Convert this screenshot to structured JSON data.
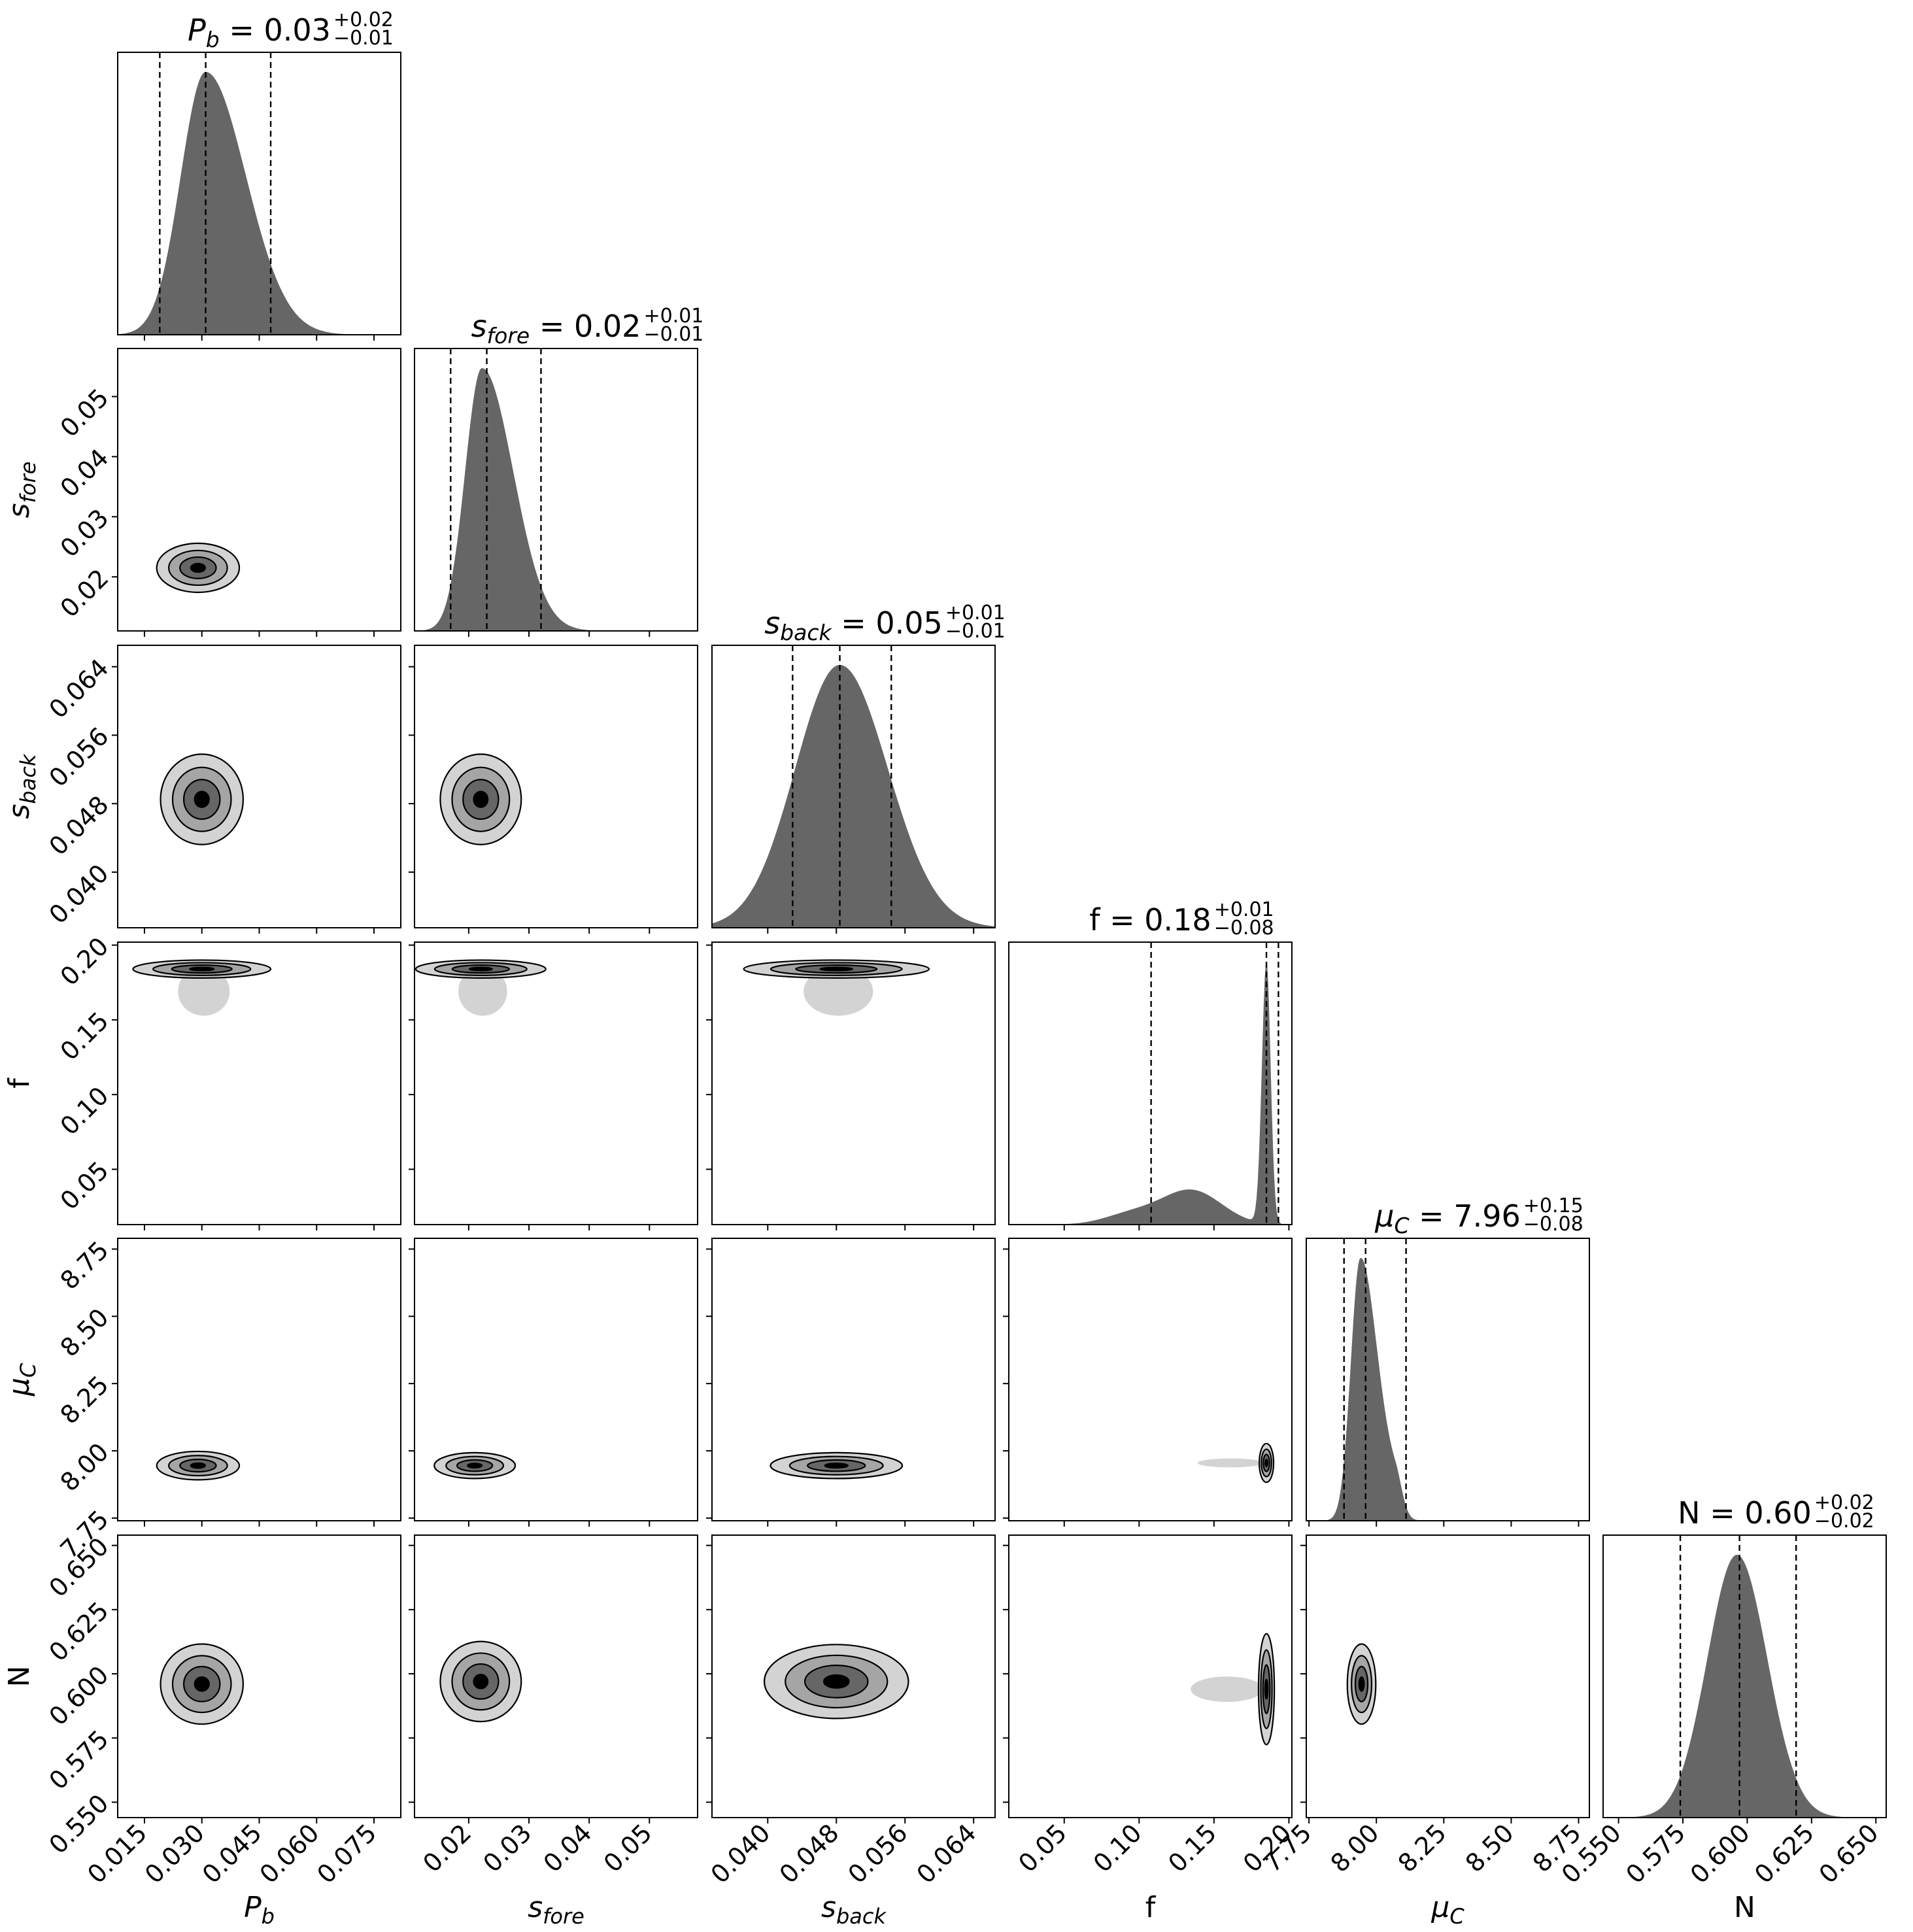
{
  "chart_data": {
    "type": "corner",
    "parameters": [
      {
        "key": "Pb",
        "label": "P",
        "label_sub": "b",
        "label_italic": true,
        "range": [
          0.008,
          0.082
        ],
        "ticks": [
          "0.015",
          "0.030",
          "0.045",
          "0.060",
          "0.075"
        ],
        "median": 0.031,
        "q16": 0.019,
        "q84": 0.048,
        "title_prefix": "P",
        "title_sub": "b",
        "title_value": " = 0.03",
        "title_err_up": "+0.02",
        "title_err_down": "−0.01",
        "hist": {
          "mode": 0.031,
          "sigma_left": 0.0065,
          "sigma_right": 0.0105
        }
      },
      {
        "key": "sfore",
        "label": "s",
        "label_sub": "fore",
        "label_italic": true,
        "range": [
          0.011,
          0.058
        ],
        "ticks": [
          "0.02",
          "0.03",
          "0.04",
          "0.05"
        ],
        "median": 0.023,
        "q16": 0.017,
        "q84": 0.032,
        "title_prefix": "s",
        "title_sub": "fore",
        "title_value": " = 0.02",
        "title_err_up": "+0.01",
        "title_err_down": "−0.01",
        "hist": {
          "mode": 0.0222,
          "sigma_left": 0.0028,
          "sigma_right": 0.0052
        }
      },
      {
        "key": "sback",
        "label": "s",
        "label_sub": "back",
        "label_italic": true,
        "range": [
          0.0335,
          0.0665
        ],
        "ticks": [
          "0.040",
          "0.048",
          "0.056",
          "0.064"
        ],
        "median": 0.0484,
        "q16": 0.0429,
        "q84": 0.0544,
        "title_prefix": "s",
        "title_sub": "back",
        "title_value": " = 0.05",
        "title_err_up": "+0.01",
        "title_err_down": "−0.01",
        "hist": {
          "mode": 0.0484,
          "sigma_left": 0.0052,
          "sigma_right": 0.0056
        }
      },
      {
        "key": "f",
        "label": "f",
        "label_sub": "",
        "label_italic": false,
        "range": [
          0.013,
          0.202
        ],
        "ticks": [
          "0.05",
          "0.10",
          "0.15",
          "0.20"
        ],
        "median": 0.185,
        "q16": 0.108,
        "q84": 0.193,
        "title_prefix": "f",
        "title_sub": "",
        "title_value": " = 0.18",
        "title_err_up": "+0.01",
        "title_err_down": "−0.08",
        "hist": {
          "mode": 0.185,
          "sigma_left": 0.003,
          "sigma_right": 0.0028
        }
      },
      {
        "key": "muC",
        "label": "μ",
        "label_sub": "C",
        "label_italic": true,
        "range": [
          7.74,
          8.79
        ],
        "ticks": [
          "7.75",
          "8.00",
          "8.25",
          "8.50",
          "8.75"
        ],
        "median": 7.96,
        "q16": 7.88,
        "q84": 8.11,
        "title_prefix": "μ",
        "title_sub": "C",
        "title_value": " = 7.96",
        "title_err_up": "+0.15",
        "title_err_down": "−0.08",
        "hist": {
          "mode": 7.94,
          "sigma_left": 0.035,
          "sigma_right": 0.06
        }
      },
      {
        "key": "N",
        "label": "N",
        "label_sub": "",
        "label_italic": false,
        "range": [
          0.544,
          0.654
        ],
        "ticks": [
          "0.550",
          "0.575",
          "0.600",
          "0.625",
          "0.650"
        ],
        "median": 0.597,
        "q16": 0.574,
        "q84": 0.619,
        "title_prefix": "N",
        "title_sub": "",
        "title_value": " = 0.60",
        "title_err_up": "+0.02",
        "title_err_down": "−0.02",
        "hist": {
          "mode": 0.596,
          "sigma_left": 0.0115,
          "sigma_right": 0.0118
        }
      }
    ],
    "fill_colors": {
      "hist": "#666666",
      "contour_1": "#d3d3d3",
      "contour_2": "#a5a5a5",
      "contour_3": "#666666",
      "contour_4": "#000000"
    },
    "joint_modes": [
      {
        "row": 1,
        "col": 0,
        "x": 0.029,
        "y": 0.0215,
        "sx": 0.0045,
        "sy": 0.0017
      },
      {
        "row": 2,
        "col": 0,
        "x": 0.03,
        "y": 0.0485,
        "sx": 0.0045,
        "sy": 0.0022
      },
      {
        "row": 2,
        "col": 1,
        "x": 0.022,
        "y": 0.0485,
        "sx": 0.0028,
        "sy": 0.0022
      },
      {
        "row": 3,
        "col": 0,
        "x": 0.03,
        "y": 0.184,
        "sx": 0.0075,
        "sy": 0.0025
      },
      {
        "row": 3,
        "col": 1,
        "x": 0.022,
        "y": 0.184,
        "sx": 0.0045,
        "sy": 0.0025
      },
      {
        "row": 3,
        "col": 2,
        "x": 0.048,
        "y": 0.184,
        "sx": 0.0045,
        "sy": 0.0025
      },
      {
        "row": 4,
        "col": 0,
        "x": 0.029,
        "y": 7.945,
        "sx": 0.0045,
        "sy": 0.022
      },
      {
        "row": 4,
        "col": 1,
        "x": 0.021,
        "y": 7.945,
        "sx": 0.0028,
        "sy": 0.02
      },
      {
        "row": 4,
        "col": 2,
        "x": 0.048,
        "y": 7.945,
        "sx": 0.0032,
        "sy": 0.02
      },
      {
        "row": 4,
        "col": 3,
        "x": 0.185,
        "y": 7.955,
        "sx": 0.002,
        "sy": 0.03
      },
      {
        "row": 5,
        "col": 0,
        "x": 0.03,
        "y": 0.596,
        "sx": 0.0045,
        "sy": 0.0065
      },
      {
        "row": 5,
        "col": 1,
        "x": 0.022,
        "y": 0.597,
        "sx": 0.0028,
        "sy": 0.0065
      },
      {
        "row": 5,
        "col": 2,
        "x": 0.048,
        "y": 0.597,
        "sx": 0.0035,
        "sy": 0.006
      },
      {
        "row": 5,
        "col": 3,
        "x": 0.185,
        "y": 0.594,
        "sx": 0.0022,
        "sy": 0.009
      },
      {
        "row": 5,
        "col": 4,
        "x": 7.945,
        "y": 0.596,
        "sx": 0.022,
        "sy": 0.0065
      }
    ]
  }
}
